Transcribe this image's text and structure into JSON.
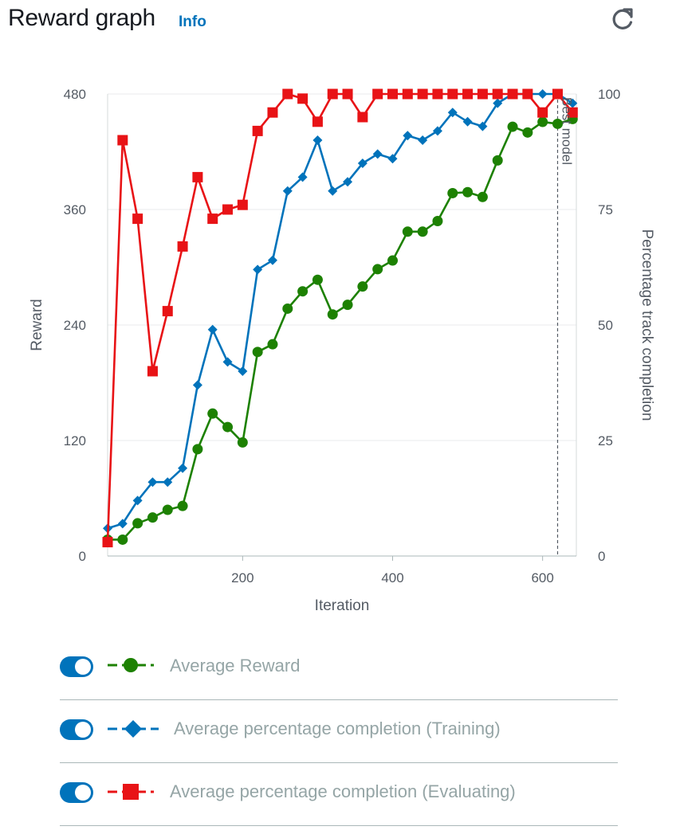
{
  "header": {
    "title": "Reward graph",
    "info_label": "Info"
  },
  "icons": {
    "refresh": "refresh-icon"
  },
  "legend": [
    {
      "label": "Average Reward",
      "color": "#1d8102",
      "marker": "circle"
    },
    {
      "label": "Average percentage completion (Training)",
      "color": "#0073bb",
      "marker": "diamond"
    },
    {
      "label": "Average percentage completion (Evaluating)",
      "color": "#e81316",
      "marker": "square"
    }
  ],
  "chart_data": {
    "type": "line",
    "xlabel": "Iteration",
    "ylabel": "Reward",
    "y2label": "Percentage track completion",
    "xlim": [
      20,
      645
    ],
    "ylim": [
      0,
      480
    ],
    "y2lim": [
      0,
      100
    ],
    "xticks": [
      200,
      400,
      600
    ],
    "yticks": [
      0,
      120,
      240,
      360,
      480
    ],
    "y2ticks": [
      0,
      25,
      50,
      75,
      100
    ],
    "grid": true,
    "annotation": {
      "x": 620,
      "label": "Best model"
    },
    "x": [
      20,
      40,
      60,
      80,
      100,
      120,
      140,
      160,
      180,
      200,
      220,
      240,
      260,
      280,
      300,
      320,
      340,
      360,
      380,
      400,
      420,
      440,
      460,
      480,
      500,
      520,
      540,
      560,
      580,
      600,
      620,
      640
    ],
    "series": [
      {
        "name": "Average Reward",
        "axis": "y",
        "color": "#1d8102",
        "marker": "circle",
        "values": [
          17,
          17,
          34,
          40,
          48,
          52,
          111,
          148,
          134,
          118,
          212,
          220,
          257,
          275,
          287,
          251,
          261,
          280,
          298,
          307,
          337,
          337,
          348,
          377,
          378,
          373,
          411,
          446,
          440,
          451,
          449,
          454
        ]
      },
      {
        "name": "Average percentage completion (Training)",
        "axis": "y2",
        "color": "#0073bb",
        "marker": "diamond",
        "values": [
          6,
          7,
          12,
          16,
          16,
          19,
          37,
          49,
          42,
          40,
          62,
          64,
          79,
          82,
          90,
          79,
          81,
          85,
          87,
          86,
          91,
          90,
          92,
          96,
          94,
          93,
          98,
          100,
          100,
          100,
          100,
          98
        ]
      },
      {
        "name": "Average percentage completion (Evaluating)",
        "axis": "y2",
        "color": "#e81316",
        "marker": "square",
        "values": [
          3,
          90,
          73,
          40,
          53,
          67,
          82,
          73,
          75,
          76,
          92,
          96,
          100,
          99,
          94,
          100,
          100,
          95,
          100,
          100,
          100,
          100,
          100,
          100,
          100,
          100,
          100,
          100,
          100,
          96,
          100,
          96
        ]
      }
    ]
  }
}
